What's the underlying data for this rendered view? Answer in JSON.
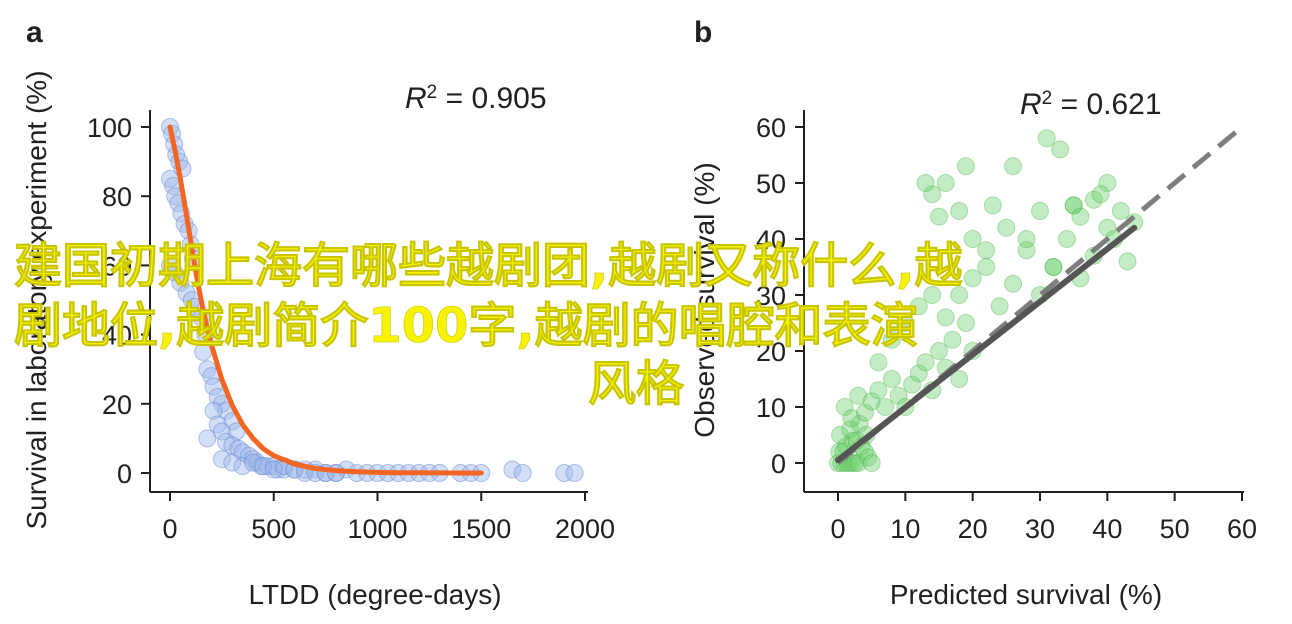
{
  "overlay_title": {
    "lines": [
      "建国初期上海有哪些越剧团,越剧又称什么,越",
      "剧地位,越剧简介100字,越剧的唱腔和表演",
      "风格"
    ]
  },
  "colors": {
    "a_points": "#9db8ea",
    "a_points_stroke": "#5a7fcf",
    "a_curve": "#f26522",
    "b_points": "#6ccf6c",
    "b_points_stroke": "#35a835",
    "b_line_dark": "#555555",
    "b_line_light": "#7d7d7d",
    "axis": "#231f20",
    "overlay_text": "#f6f200"
  },
  "chart_data": [
    {
      "panel": "a",
      "type": "scatter",
      "xlabel": "LTDD (degree-days)",
      "ylabel": "Survival in laboratory experiment (%)",
      "annotation": {
        "r2_label": "R",
        "r2_exp": "2",
        "r2_value": " = 0.905"
      },
      "xlim": [
        0,
        2000
      ],
      "ylim": [
        0,
        100
      ],
      "xticks": [
        0,
        500,
        1000,
        1500,
        2000
      ],
      "yticks": [
        0,
        20,
        40,
        60,
        80,
        100
      ],
      "series": [
        {
          "kind": "points",
          "x": [
            0,
            10,
            20,
            30,
            45,
            60,
            0,
            15,
            25,
            40,
            55,
            70,
            90,
            100,
            110,
            0,
            20,
            50,
            80,
            105,
            120,
            150,
            170,
            160,
            180,
            200,
            210,
            230,
            250,
            270,
            300,
            320,
            180,
            210,
            230,
            250,
            270,
            300,
            330,
            350,
            380,
            400,
            420,
            440,
            470,
            500,
            520,
            550,
            600,
            650,
            700,
            750,
            800,
            850,
            900,
            950,
            1000,
            1050,
            1100,
            1150,
            1200,
            1250,
            1300,
            1400,
            1450,
            1500,
            1650,
            1700,
            1900,
            1950,
            250,
            300,
            350,
            400,
            450,
            500,
            550,
            600,
            650,
            700,
            750,
            800
          ],
          "y": [
            100,
            98,
            95,
            92,
            90,
            88,
            85,
            83,
            80,
            78,
            75,
            72,
            70,
            66,
            62,
            60,
            58,
            55,
            52,
            50,
            48,
            45,
            40,
            35,
            30,
            28,
            25,
            22,
            20,
            18,
            15,
            12,
            10,
            18,
            14,
            12,
            9,
            8,
            7,
            6,
            5,
            4,
            3,
            2,
            2,
            2,
            1,
            1,
            1,
            0,
            1,
            0,
            0,
            1,
            0,
            0,
            0,
            0,
            0,
            0,
            0,
            0,
            0,
            0,
            0,
            0,
            1,
            0,
            0,
            0,
            4,
            3,
            2,
            3,
            2,
            1,
            2,
            1,
            1,
            0,
            0,
            0
          ]
        },
        {
          "kind": "fitted-curve",
          "x": [
            0,
            25,
            50,
            75,
            100,
            125,
            150,
            175,
            200,
            250,
            300,
            350,
            400,
            450,
            500,
            600,
            700,
            800,
            900,
            1000,
            1100,
            1200,
            1300,
            1400,
            1500
          ],
          "y": [
            100,
            93,
            85,
            76,
            67,
            58,
            50,
            43,
            37,
            27,
            19.5,
            14,
            10,
            7,
            5,
            2.6,
            1.3,
            0.7,
            0.35,
            0.18,
            0.1,
            0.05,
            0.03,
            0.01,
            0
          ]
        }
      ]
    },
    {
      "panel": "b",
      "type": "scatter",
      "xlabel": "Predicted survival (%)",
      "ylabel": "Observed survival (%)",
      "annotation": {
        "r2_label": "R",
        "r2_exp": "2",
        "r2_value": " = 0.621"
      },
      "xlim": [
        0,
        60
      ],
      "ylim": [
        0,
        60
      ],
      "xticks": [
        0,
        10,
        20,
        30,
        40,
        50,
        60
      ],
      "yticks": [
        0,
        10,
        20,
        30,
        40,
        50,
        60
      ],
      "series": [
        {
          "kind": "points",
          "x": [
            0,
            0.5,
            1,
            1.5,
            2,
            2.5,
            3,
            0.2,
            0.8,
            1.2,
            2.2,
            3.5,
            4,
            4.5,
            5,
            0.3,
            1.8,
            2.8,
            3.2,
            4.2,
            1,
            2,
            3,
            4,
            5,
            6,
            7,
            8,
            9,
            10,
            11,
            12,
            13,
            14,
            15,
            16,
            17,
            18,
            19,
            20,
            6,
            8,
            10,
            12,
            14,
            16,
            18,
            20,
            22,
            24,
            26,
            28,
            30,
            32,
            34,
            36,
            38,
            40,
            14,
            16,
            18,
            20,
            22,
            25,
            28,
            30,
            32,
            35,
            38,
            40,
            42,
            44,
            13,
            15,
            19,
            23,
            26,
            31,
            33,
            35,
            36,
            39,
            41,
            43
          ],
          "y": [
            0,
            0,
            0,
            0,
            0,
            0,
            0,
            2,
            2,
            3,
            4,
            3,
            2,
            1,
            0,
            5,
            6,
            4,
            7,
            5,
            10,
            8,
            12,
            9,
            11,
            13,
            10,
            15,
            12,
            10,
            14,
            16,
            18,
            13,
            20,
            17,
            22,
            15,
            25,
            20,
            18,
            22,
            25,
            28,
            30,
            26,
            30,
            33,
            35,
            28,
            32,
            38,
            30,
            35,
            40,
            33,
            37,
            42,
            48,
            50,
            45,
            40,
            38,
            42,
            40,
            45,
            35,
            46,
            47,
            50,
            45,
            43,
            50,
            44,
            53,
            46,
            53,
            58,
            56,
            46,
            44,
            48,
            40,
            36
          ]
        },
        {
          "kind": "identity-dashed-line",
          "x": [
            0,
            60
          ],
          "y": [
            0,
            60
          ]
        },
        {
          "kind": "regression-line",
          "x": [
            0,
            44
          ],
          "y": [
            0.5,
            42
          ]
        }
      ]
    }
  ]
}
